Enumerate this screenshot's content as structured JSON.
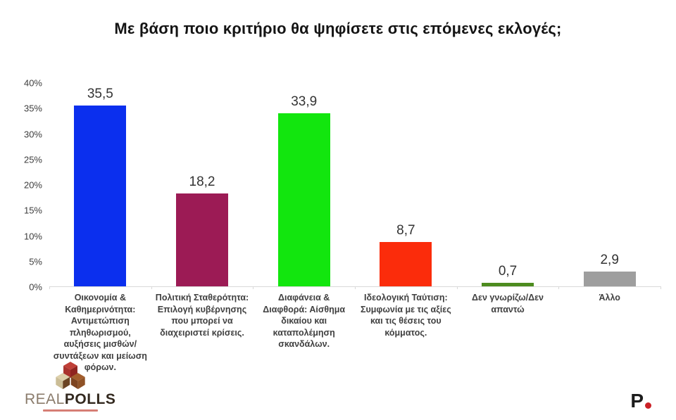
{
  "title": "Με βάση ποιο κριτήριο θα ψηφίσετε στις επόμενες εκλογές;",
  "chart_data": {
    "type": "bar",
    "title": "Με βάση ποιο κριτήριο θα ψηφίσετε στις επόμενες εκλογές;",
    "categories": [
      "Οικονομία & Καθημερινότητα: Αντιμετώπιση πληθωρισμού, αυξήσεις μισθών/συντάξεων και μείωση φόρων.",
      "Πολιτική Σταθερότητα: Επιλογή κυβέρνησης που μπορεί να διαχειριστεί κρίσεις.",
      "Διαφάνεια & Διαφθορά: Αίσθημα δικαίου και καταπολέμηση σκανδάλων.",
      "Ιδεολογική Ταύτιση: Συμφωνία με τις αξίες και τις θέσεις του κόμματος.",
      "Δεν γνωρίζω/Δεν απαντώ",
      "Άλλο"
    ],
    "values": [
      35.5,
      18.2,
      33.9,
      8.7,
      0.7,
      2.9
    ],
    "value_labels": [
      "35,5",
      "18,2",
      "33,9",
      "8,7",
      "0,7",
      "2,9"
    ],
    "bar_colors": [
      "#0b2fee",
      "#9c1b55",
      "#12e60e",
      "#fb2c0b",
      "#4d8c1f",
      "#9e9e9e"
    ],
    "xlabel": "",
    "ylabel": "",
    "ylim": [
      0,
      40
    ],
    "y_ticks": [
      "0%",
      "5%",
      "10%",
      "15%",
      "20%",
      "25%",
      "30%",
      "35%",
      "40%"
    ],
    "grid": false,
    "legend": false,
    "baseline_color": "#d9d9d9"
  },
  "footer": {
    "realpolls": {
      "real": "REAL",
      "polls": "POLLS"
    },
    "p_logo": {
      "text": "P",
      "dot_color": "#cb2127"
    }
  }
}
